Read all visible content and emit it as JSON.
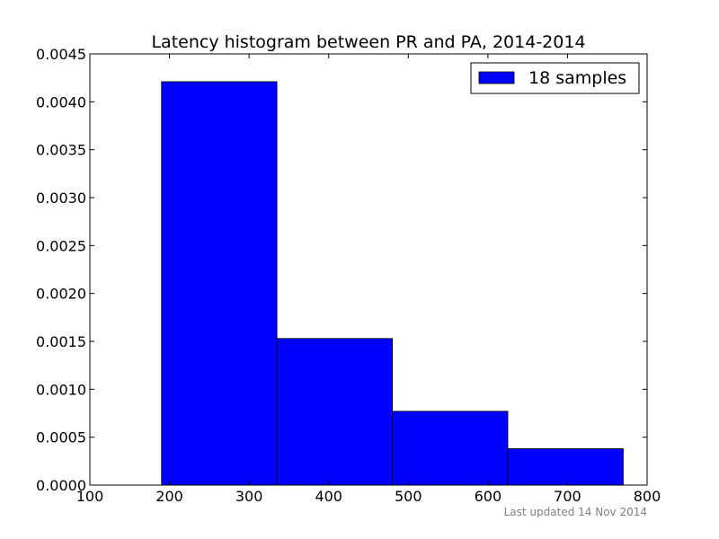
{
  "chart_data": {
    "type": "bar",
    "title": "Latency histogram between PR and PA, 2014-2014",
    "xlabel": "",
    "ylabel": "",
    "xlim": [
      100,
      800
    ],
    "ylim": [
      0,
      0.0045
    ],
    "x_ticks": [
      "100",
      "200",
      "300",
      "400",
      "500",
      "600",
      "700",
      "800"
    ],
    "y_ticks": [
      "0.0000",
      "0.0005",
      "0.0010",
      "0.0015",
      "0.0020",
      "0.0025",
      "0.0030",
      "0.0035",
      "0.0040",
      "0.0045"
    ],
    "bins": [
      {
        "x0": 190,
        "x1": 335,
        "value": 0.00421
      },
      {
        "x0": 335,
        "x1": 480,
        "value": 0.00153
      },
      {
        "x0": 480,
        "x1": 625,
        "value": 0.00077
      },
      {
        "x0": 625,
        "x1": 770,
        "value": 0.00038
      }
    ],
    "series": [
      {
        "name": "18 samples",
        "color": "#0000ff"
      }
    ],
    "legend_position": "top-right",
    "grid": false
  },
  "footnote": "Last updated 14 Nov 2014"
}
